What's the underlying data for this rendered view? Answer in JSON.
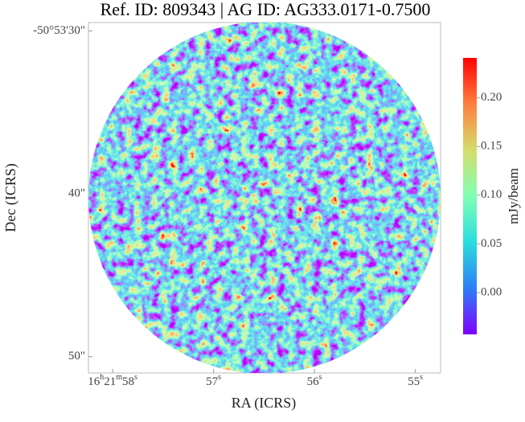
{
  "chart_data": {
    "type": "image",
    "title": "Ref. ID: 809343 | AG ID: AG333.0171-0.7500",
    "x_label": "RA (ICRS)",
    "y_label": "Dec (ICRS)",
    "colorbar_label": "mJy/beam",
    "xlim": [
      58.24,
      54.75
    ],
    "xticks": [
      {
        "value": 58,
        "label": "16h21m58s"
      },
      {
        "value": 57,
        "label": "57s"
      },
      {
        "value": 56,
        "label": "56s"
      },
      {
        "value": 55,
        "label": "55s"
      }
    ],
    "ylim": [
      51.0,
      29.48
    ],
    "yticks": [
      {
        "value": 30,
        "label": "-50°53'30\""
      },
      {
        "value": 40,
        "label": "40\""
      },
      {
        "value": 50,
        "label": "50\""
      }
    ],
    "clim": [
      -0.043,
      0.241
    ],
    "cticks": [
      {
        "value": 0,
        "label": "0.00"
      },
      {
        "value": 0.05,
        "label": "0.05"
      },
      {
        "value": 0.1,
        "label": "0.10"
      },
      {
        "value": 0.15,
        "label": "0.15"
      },
      {
        "value": 0.2,
        "label": "0.20"
      }
    ],
    "colormap": [
      "#8000ff",
      "#2c7ef7",
      "#2adddd",
      "#80ffb4",
      "#d4dd6a",
      "#ff7f3f",
      "#ff0000"
    ]
  }
}
